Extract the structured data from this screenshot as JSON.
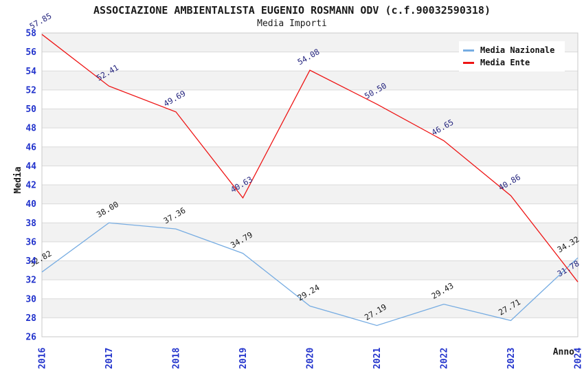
{
  "chart_data": {
    "type": "line",
    "title": "ASSOCIAZIONE AMBIENTALISTA EUGENIO ROSMANN ODV (c.f.90032590318)",
    "subtitle": "Media Importi",
    "xlabel": "Anno",
    "ylabel": "Media",
    "x": [
      "2016",
      "2017",
      "2018",
      "2019",
      "2020",
      "2021",
      "2022",
      "2023",
      "2024"
    ],
    "ylim": [
      26,
      58
    ],
    "ytick_step": 2,
    "grid": true,
    "legend_position": "top-right",
    "series": [
      {
        "name": "Media Nazionale",
        "color": "#76ace2",
        "label_color": "#1a1a1a",
        "values": [
          32.82,
          38.0,
          37.36,
          34.79,
          29.24,
          27.19,
          29.43,
          27.71,
          34.32
        ]
      },
      {
        "name": "Media Ente",
        "color": "#ee1414",
        "label_color": "#26267f",
        "values": [
          57.85,
          52.41,
          49.69,
          40.63,
          54.08,
          50.5,
          46.65,
          40.86,
          31.78
        ]
      }
    ],
    "colors": {
      "axis_text": "#2233cc",
      "frame": "#c9c9c9",
      "grid": "#dadada",
      "band": "#f2f2f2",
      "background": "#ffffff",
      "title_text": "#1a1a1a"
    }
  }
}
